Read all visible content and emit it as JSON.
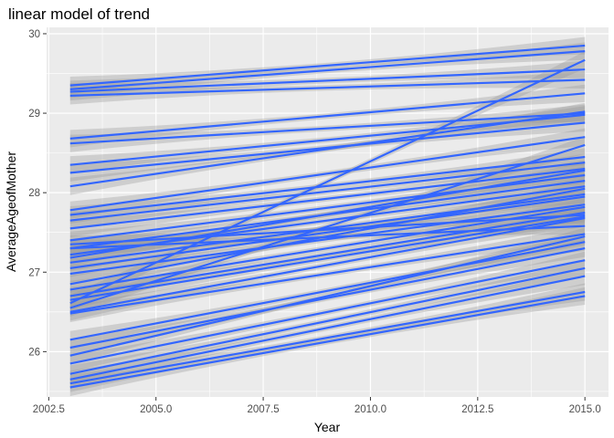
{
  "chart_data": {
    "type": "line",
    "title": "linear model of trend",
    "xlabel": "Year",
    "ylabel": "AverageAgeofMother",
    "xlim": [
      2002.45,
      2015.55
    ],
    "ylim": [
      25.43,
      30.08
    ],
    "x_ticks": [
      2002.5,
      2005.0,
      2007.5,
      2010.0,
      2012.5,
      2015.0
    ],
    "x_tick_labels": [
      "2002.5",
      "2005.0",
      "2007.5",
      "2010.0",
      "2012.5",
      "2015.0"
    ],
    "y_ticks": [
      26,
      27,
      28,
      29,
      30
    ],
    "y_tick_labels": [
      "26",
      "27",
      "28",
      "29",
      "30"
    ],
    "grid": true,
    "legend": "none",
    "colors": {
      "panel": "#ebebeb",
      "grid": "#ffffff",
      "line": "#3366ff",
      "ribbon": "#999999"
    },
    "series": [
      {
        "x": [
          2003,
          2015
        ],
        "values": [
          29.35,
          29.85
        ]
      },
      {
        "x": [
          2003,
          2015
        ],
        "values": [
          29.3,
          29.78
        ]
      },
      {
        "x": [
          2003,
          2015
        ],
        "values": [
          29.27,
          29.55
        ]
      },
      {
        "x": [
          2003,
          2015
        ],
        "values": [
          29.22,
          29.42
        ]
      },
      {
        "x": [
          2003,
          2015
        ],
        "values": [
          26.61,
          29.67
        ]
      },
      {
        "x": [
          2003,
          2015
        ],
        "values": [
          28.68,
          29.25
        ]
      },
      {
        "x": [
          2003,
          2015
        ],
        "values": [
          28.62,
          29.0
        ]
      },
      {
        "x": [
          2003,
          2015
        ],
        "values": [
          28.35,
          28.98
        ]
      },
      {
        "x": [
          2003,
          2015
        ],
        "values": [
          28.25,
          28.88
        ]
      },
      {
        "x": [
          2003,
          2015
        ],
        "values": [
          28.08,
          29.02
        ]
      },
      {
        "x": [
          2003,
          2015
        ],
        "values": [
          27.78,
          28.7
        ]
      },
      {
        "x": [
          2003,
          2015
        ],
        "values": [
          27.72,
          28.45
        ]
      },
      {
        "x": [
          2003,
          2015
        ],
        "values": [
          27.65,
          28.38
        ]
      },
      {
        "x": [
          2003,
          2015
        ],
        "values": [
          27.55,
          28.3
        ]
      },
      {
        "x": [
          2003,
          2015
        ],
        "values": [
          27.4,
          28.22
        ]
      },
      {
        "x": [
          2003,
          2015
        ],
        "values": [
          27.3,
          28.15
        ]
      },
      {
        "x": [
          2003,
          2015
        ],
        "values": [
          27.22,
          28.08
        ]
      },
      {
        "x": [
          2003,
          2015
        ],
        "values": [
          27.18,
          28.28
        ]
      },
      {
        "x": [
          2003,
          2015
        ],
        "values": [
          27.12,
          27.98
        ]
      },
      {
        "x": [
          2003,
          2015
        ],
        "values": [
          27.05,
          27.95
        ]
      },
      {
        "x": [
          2003,
          2015
        ],
        "values": [
          26.98,
          27.85
        ]
      },
      {
        "x": [
          2003,
          2015
        ],
        "values": [
          26.85,
          28.05
        ]
      },
      {
        "x": [
          2003,
          2015
        ],
        "values": [
          26.78,
          27.82
        ]
      },
      {
        "x": [
          2003,
          2015
        ],
        "values": [
          26.7,
          27.75
        ]
      },
      {
        "x": [
          2003,
          2015
        ],
        "values": [
          26.65,
          27.7
        ]
      },
      {
        "x": [
          2003,
          2015
        ],
        "values": [
          26.55,
          28.6
        ]
      },
      {
        "x": [
          2003,
          2015
        ],
        "values": [
          26.5,
          27.68
        ]
      },
      {
        "x": [
          2003,
          2015
        ],
        "values": [
          26.48,
          27.48
        ]
      },
      {
        "x": [
          2003,
          2015
        ],
        "values": [
          27.35,
          27.72
        ]
      },
      {
        "x": [
          2003,
          2015
        ],
        "values": [
          27.3,
          27.58
        ]
      },
      {
        "x": [
          2003,
          2015
        ],
        "values": [
          26.15,
          27.38
        ]
      },
      {
        "x": [
          2003,
          2015
        ],
        "values": [
          26.05,
          27.3
        ]
      },
      {
        "x": [
          2003,
          2015
        ],
        "values": [
          25.95,
          27.45
        ]
      },
      {
        "x": [
          2003,
          2015
        ],
        "values": [
          25.85,
          27.15
        ]
      },
      {
        "x": [
          2003,
          2015
        ],
        "values": [
          25.72,
          27.05
        ]
      },
      {
        "x": [
          2003,
          2015
        ],
        "values": [
          25.65,
          26.95
        ]
      },
      {
        "x": [
          2003,
          2015
        ],
        "values": [
          25.6,
          26.75
        ]
      },
      {
        "x": [
          2003,
          2015
        ],
        "values": [
          25.55,
          26.7
        ]
      }
    ]
  }
}
